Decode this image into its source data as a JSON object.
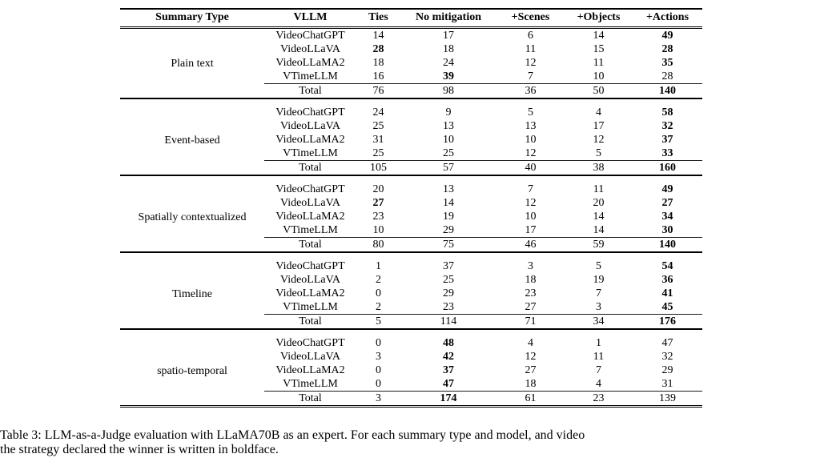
{
  "colors": {
    "text": "#000000",
    "background": "#ffffff",
    "rule": "#000000"
  },
  "table": {
    "headers": [
      "Summary Type",
      "VLLM",
      "Ties",
      "No mitigation",
      "+Scenes",
      "+Objects",
      "+Actions"
    ],
    "sections": [
      {
        "summary_type": "Plain text",
        "rows": [
          {
            "model": "VideoChatGPT",
            "values": [
              "14",
              "17",
              "6",
              "14",
              "49"
            ],
            "bold": [
              4
            ]
          },
          {
            "model": "VideoLLaVA",
            "values": [
              "28",
              "18",
              "11",
              "15",
              "28"
            ],
            "bold": [
              0,
              4
            ]
          },
          {
            "model": "VideoLLaMA2",
            "values": [
              "18",
              "24",
              "12",
              "11",
              "35"
            ],
            "bold": [
              4
            ]
          },
          {
            "model": "VTimeLLM",
            "values": [
              "16",
              "39",
              "7",
              "10",
              "28"
            ],
            "bold": [
              1
            ]
          },
          {
            "model": "Total",
            "values": [
              "76",
              "98",
              "36",
              "50",
              "140"
            ],
            "bold": [
              4
            ],
            "total": true
          }
        ]
      },
      {
        "summary_type": "Event-based",
        "rows": [
          {
            "model": "VideoChatGPT",
            "values": [
              "24",
              "9",
              "5",
              "4",
              "58"
            ],
            "bold": [
              4
            ]
          },
          {
            "model": "VideoLLaVA",
            "values": [
              "25",
              "13",
              "13",
              "17",
              "32"
            ],
            "bold": [
              4
            ]
          },
          {
            "model": "VideoLLaMA2",
            "values": [
              "31",
              "10",
              "10",
              "12",
              "37"
            ],
            "bold": [
              4
            ]
          },
          {
            "model": "VTimeLLM",
            "values": [
              "25",
              "25",
              "12",
              "5",
              "33"
            ],
            "bold": [
              4
            ]
          },
          {
            "model": "Total",
            "values": [
              "105",
              "57",
              "40",
              "38",
              "160"
            ],
            "bold": [
              4
            ],
            "total": true
          }
        ]
      },
      {
        "summary_type": "Spatially contextualized",
        "rows": [
          {
            "model": "VideoChatGPT",
            "values": [
              "20",
              "13",
              "7",
              "11",
              "49"
            ],
            "bold": [
              4
            ]
          },
          {
            "model": "VideoLLaVA",
            "values": [
              "27",
              "14",
              "12",
              "20",
              "27"
            ],
            "bold": [
              0,
              4
            ]
          },
          {
            "model": "VideoLLaMA2",
            "values": [
              "23",
              "19",
              "10",
              "14",
              "34"
            ],
            "bold": [
              4
            ]
          },
          {
            "model": "VTimeLLM",
            "values": [
              "10",
              "29",
              "17",
              "14",
              "30"
            ],
            "bold": [
              4
            ]
          },
          {
            "model": "Total",
            "values": [
              "80",
              "75",
              "46",
              "59",
              "140"
            ],
            "bold": [
              4
            ],
            "total": true
          }
        ]
      },
      {
        "summary_type": "Timeline",
        "rows": [
          {
            "model": "VideoChatGPT",
            "values": [
              "1",
              "37",
              "3",
              "5",
              "54"
            ],
            "bold": [
              4
            ]
          },
          {
            "model": "VideoLLaVA",
            "values": [
              "2",
              "25",
              "18",
              "19",
              "36"
            ],
            "bold": [
              4
            ]
          },
          {
            "model": "VideoLLaMA2",
            "values": [
              "0",
              "29",
              "23",
              "7",
              "41"
            ],
            "bold": [
              4
            ]
          },
          {
            "model": "VTimeLLM",
            "values": [
              "2",
              "23",
              "27",
              "3",
              "45"
            ],
            "bold": [
              4
            ]
          },
          {
            "model": "Total",
            "values": [
              "5",
              "114",
              "71",
              "34",
              "176"
            ],
            "bold": [
              4
            ],
            "total": true
          }
        ]
      },
      {
        "summary_type": "spatio-temporal",
        "rows": [
          {
            "model": "VideoChatGPT",
            "values": [
              "0",
              "48",
              "4",
              "1",
              "47"
            ],
            "bold": [
              1
            ]
          },
          {
            "model": "VideoLLaVA",
            "values": [
              "3",
              "42",
              "12",
              "11",
              "32"
            ],
            "bold": [
              1
            ]
          },
          {
            "model": "VideoLLaMA2",
            "values": [
              "0",
              "37",
              "27",
              "7",
              "29"
            ],
            "bold": [
              1
            ]
          },
          {
            "model": "VTimeLLM",
            "values": [
              "0",
              "47",
              "18",
              "4",
              "31"
            ],
            "bold": [
              1
            ]
          },
          {
            "model": "Total",
            "values": [
              "3",
              "174",
              "61",
              "23",
              "139"
            ],
            "bold": [
              1
            ],
            "total": true
          }
        ]
      }
    ]
  },
  "caption": {
    "lines": [
      "Table 3: LLM-as-a-Judge evaluation with LLaMA70B as an expert. For each summary type and model, and video",
      "the strategy declared the winner is written in boldface."
    ]
  }
}
